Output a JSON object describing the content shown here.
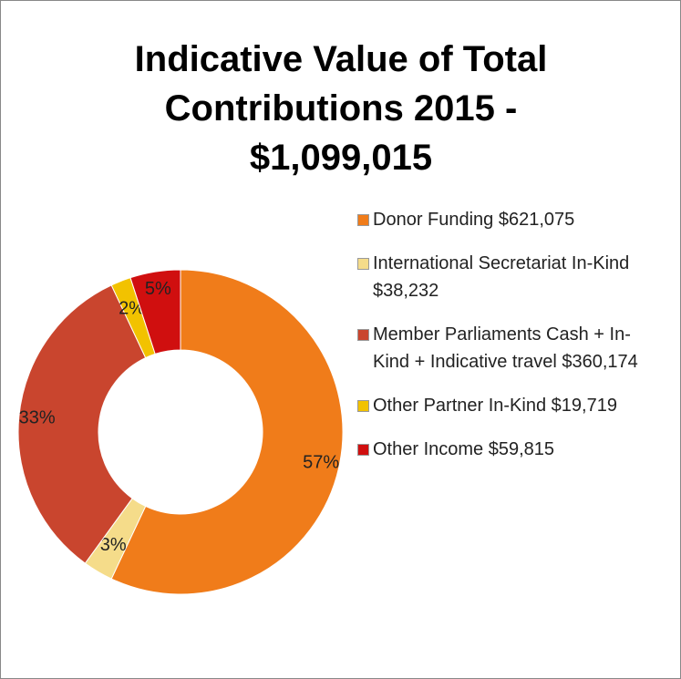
{
  "chart_data": {
    "type": "donut",
    "title": "Indicative Value of Total Contributions 2015 - $1,099,015",
    "categories": [
      "Donor Funding $621,075",
      "International Secretariat In-Kind $38,232",
      "Member Parliaments Cash + In-Kind + Indicative travel $360,174",
      "Other Partner In-Kind $19,719",
      "Other Income $59,815"
    ],
    "values": [
      57,
      3,
      33,
      2,
      5
    ],
    "value_labels": [
      "57%",
      "3%",
      "33%",
      "2%",
      "5%"
    ],
    "colors": [
      "#f07c1a",
      "#f5dc8a",
      "#c9452e",
      "#f2c200",
      "#d00f0f"
    ],
    "legend": "right"
  }
}
